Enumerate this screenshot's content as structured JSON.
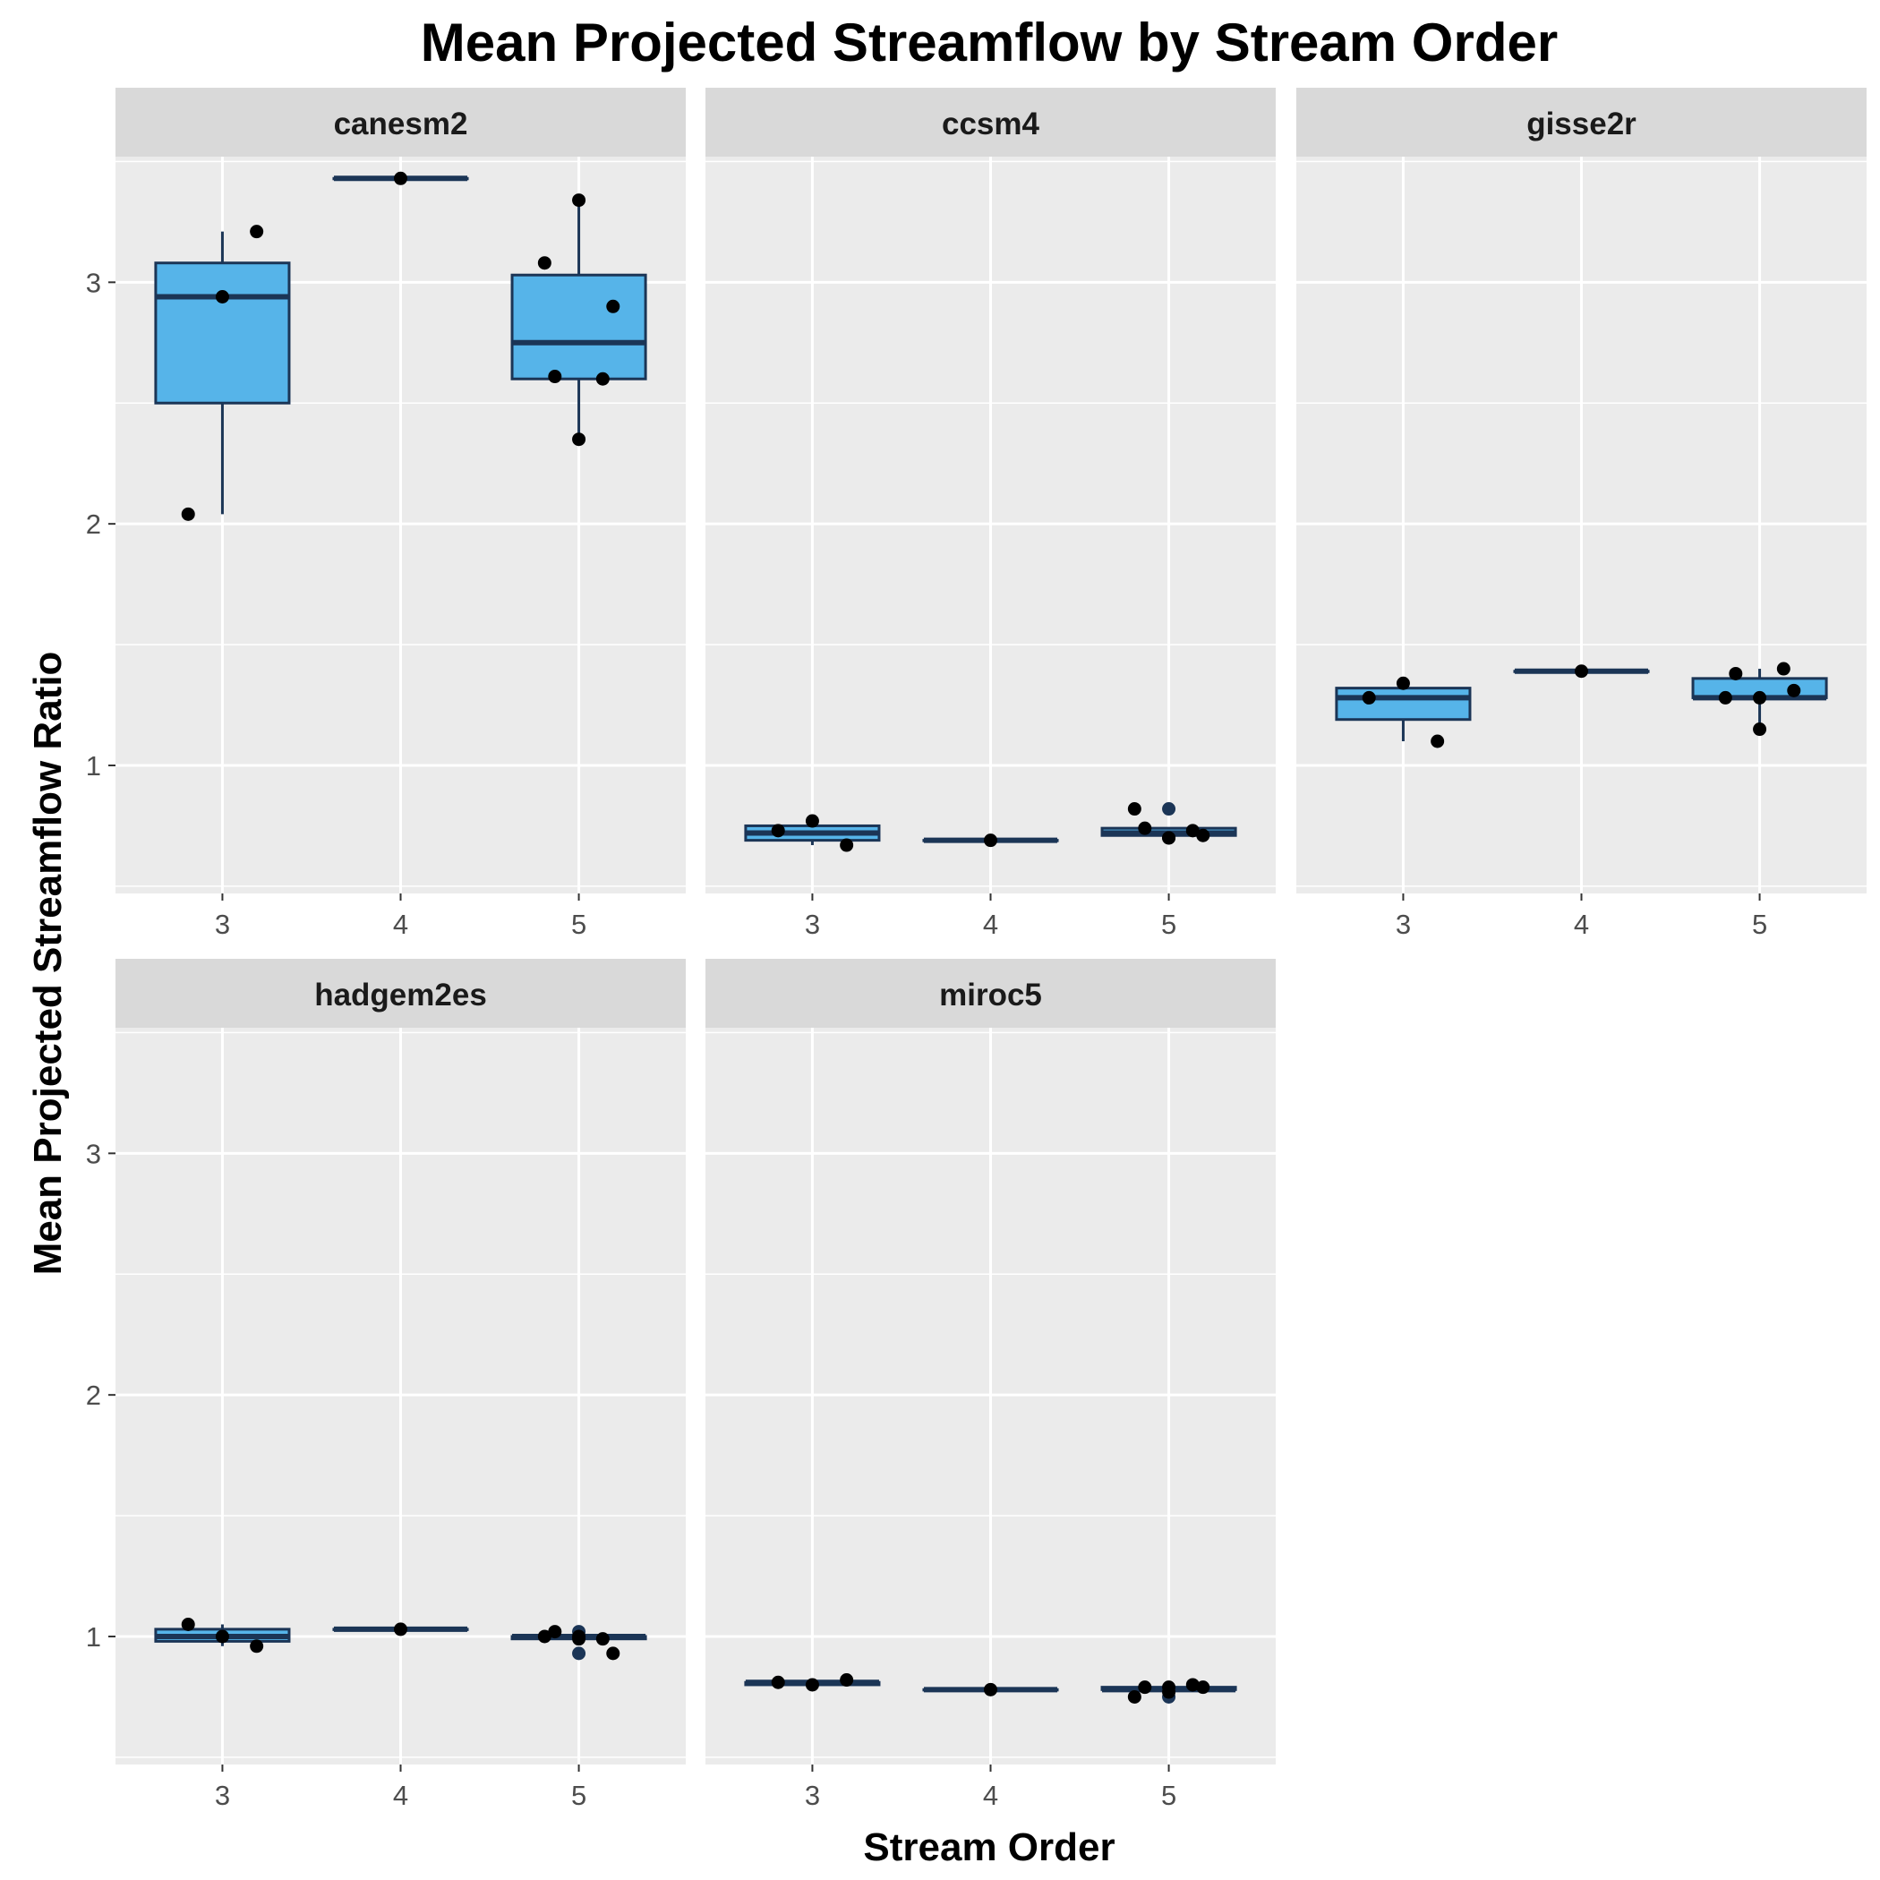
{
  "chart_data": {
    "type": "boxplot",
    "title": "Mean Projected Streamflow by Stream Order",
    "xlabel": "Stream Order",
    "ylabel": "Mean Projected Streamflow Ratio",
    "categories": [
      "3",
      "4",
      "5"
    ],
    "y_ticks": [
      1,
      2,
      3
    ],
    "ylim": [
      0.47,
      3.52
    ],
    "grid": true,
    "facet_layout": "3 columns x 2 rows",
    "colors": {
      "box_fill": "#56B4E9",
      "box_line": "#1B3556",
      "point": "#000000",
      "outlier": "#1B3556",
      "panel_bg": "#EBEBEB",
      "strip_bg": "#D9D9D9",
      "grid": "#FFFFFF"
    },
    "panels": [
      {
        "name": "canesm2",
        "boxes": [
          {
            "x": "3",
            "lower": 2.04,
            "q1": 2.5,
            "median": 2.94,
            "q3": 3.08,
            "upper": 3.21
          },
          {
            "x": "4",
            "lower": 3.43,
            "q1": 3.43,
            "median": 3.43,
            "q3": 3.43,
            "upper": 3.43
          },
          {
            "x": "5",
            "lower": 2.34,
            "q1": 2.6,
            "median": 2.75,
            "q3": 3.03,
            "upper": 3.34
          }
        ],
        "points": [
          {
            "x": "3",
            "y": 2.04
          },
          {
            "x": "3",
            "y": 2.94
          },
          {
            "x": "3",
            "y": 3.21
          },
          {
            "x": "4",
            "y": 3.43
          },
          {
            "x": "5",
            "y": 3.08
          },
          {
            "x": "5",
            "y": 3.34
          },
          {
            "x": "5",
            "y": 2.9
          },
          {
            "x": "5",
            "y": 2.61
          },
          {
            "x": "5",
            "y": 2.6
          },
          {
            "x": "5",
            "y": 2.35
          }
        ],
        "outliers": []
      },
      {
        "name": "ccsm4",
        "boxes": [
          {
            "x": "3",
            "lower": 0.67,
            "q1": 0.69,
            "median": 0.72,
            "q3": 0.75,
            "upper": 0.77
          },
          {
            "x": "4",
            "lower": 0.69,
            "q1": 0.69,
            "median": 0.69,
            "q3": 0.69,
            "upper": 0.69
          },
          {
            "x": "5",
            "lower": 0.7,
            "q1": 0.71,
            "median": 0.72,
            "q3": 0.74,
            "upper": 0.74
          }
        ],
        "points": [
          {
            "x": "3",
            "y": 0.73
          },
          {
            "x": "3",
            "y": 0.77
          },
          {
            "x": "3",
            "y": 0.67
          },
          {
            "x": "4",
            "y": 0.69
          },
          {
            "x": "5",
            "y": 0.82
          },
          {
            "x": "5",
            "y": 0.7
          },
          {
            "x": "5",
            "y": 0.71
          },
          {
            "x": "5",
            "y": 0.74
          },
          {
            "x": "5",
            "y": 0.73
          },
          {
            "x": "5",
            "y": 0.7
          }
        ],
        "outliers": [
          {
            "x": "5",
            "y": 0.82
          }
        ]
      },
      {
        "name": "gisse2r",
        "boxes": [
          {
            "x": "3",
            "lower": 1.1,
            "q1": 1.19,
            "median": 1.28,
            "q3": 1.32,
            "upper": 1.34
          },
          {
            "x": "4",
            "lower": 1.39,
            "q1": 1.39,
            "median": 1.39,
            "q3": 1.39,
            "upper": 1.39
          },
          {
            "x": "5",
            "lower": 1.15,
            "q1": 1.28,
            "median": 1.28,
            "q3": 1.36,
            "upper": 1.4
          }
        ],
        "points": [
          {
            "x": "3",
            "y": 1.28
          },
          {
            "x": "3",
            "y": 1.34
          },
          {
            "x": "3",
            "y": 1.1
          },
          {
            "x": "4",
            "y": 1.39
          },
          {
            "x": "5",
            "y": 1.28
          },
          {
            "x": "5",
            "y": 1.28
          },
          {
            "x": "5",
            "y": 1.31
          },
          {
            "x": "5",
            "y": 1.38
          },
          {
            "x": "5",
            "y": 1.4
          },
          {
            "x": "5",
            "y": 1.15
          }
        ],
        "outliers": []
      },
      {
        "name": "hadgem2es",
        "boxes": [
          {
            "x": "3",
            "lower": 0.96,
            "q1": 0.98,
            "median": 1.0,
            "q3": 1.03,
            "upper": 1.05
          },
          {
            "x": "4",
            "lower": 1.03,
            "q1": 1.03,
            "median": 1.03,
            "q3": 1.03,
            "upper": 1.03
          },
          {
            "x": "5",
            "lower": 0.99,
            "q1": 0.99,
            "median": 1.0,
            "q3": 1.0,
            "upper": 1.0
          }
        ],
        "points": [
          {
            "x": "3",
            "y": 1.05
          },
          {
            "x": "3",
            "y": 1.0
          },
          {
            "x": "3",
            "y": 0.96
          },
          {
            "x": "4",
            "y": 1.03
          },
          {
            "x": "5",
            "y": 1.0
          },
          {
            "x": "5",
            "y": 1.0
          },
          {
            "x": "5",
            "y": 0.93
          },
          {
            "x": "5",
            "y": 1.02
          },
          {
            "x": "5",
            "y": 0.99
          },
          {
            "x": "5",
            "y": 0.99
          }
        ],
        "outliers": [
          {
            "x": "5",
            "y": 1.02
          },
          {
            "x": "5",
            "y": 0.93
          }
        ]
      },
      {
        "name": "miroc5",
        "boxes": [
          {
            "x": "3",
            "lower": 0.8,
            "q1": 0.8,
            "median": 0.81,
            "q3": 0.81,
            "upper": 0.81
          },
          {
            "x": "4",
            "lower": 0.78,
            "q1": 0.78,
            "median": 0.78,
            "q3": 0.78,
            "upper": 0.78
          },
          {
            "x": "5",
            "lower": 0.76,
            "q1": 0.78,
            "median": 0.78,
            "q3": 0.79,
            "upper": 0.8
          }
        ],
        "points": [
          {
            "x": "3",
            "y": 0.81
          },
          {
            "x": "3",
            "y": 0.8
          },
          {
            "x": "3",
            "y": 0.82
          },
          {
            "x": "4",
            "y": 0.78
          },
          {
            "x": "5",
            "y": 0.75
          },
          {
            "x": "5",
            "y": 0.77
          },
          {
            "x": "5",
            "y": 0.79
          },
          {
            "x": "5",
            "y": 0.79
          },
          {
            "x": "5",
            "y": 0.8
          },
          {
            "x": "5",
            "y": 0.79
          }
        ],
        "outliers": [
          {
            "x": "5",
            "y": 0.75
          }
        ]
      }
    ]
  }
}
